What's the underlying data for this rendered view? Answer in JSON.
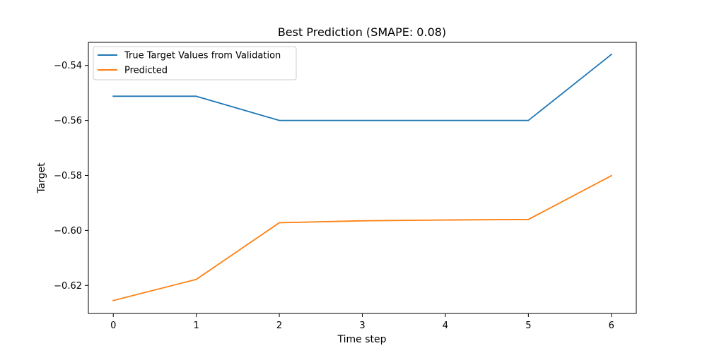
{
  "chart_data": {
    "type": "line",
    "title": "Best Prediction (SMAPE: 0.08)",
    "xlabel": "Time step",
    "ylabel": "Target",
    "x": [
      0,
      1,
      2,
      3,
      4,
      5,
      6
    ],
    "x_ticks": [
      0,
      1,
      2,
      3,
      4,
      5,
      6
    ],
    "y_ticks": [
      -0.54,
      -0.56,
      -0.58,
      -0.6,
      -0.62
    ],
    "y_tick_labels": [
      "−0.54",
      "−0.56",
      "−0.58",
      "−0.60",
      "−0.62"
    ],
    "xlim": [
      -0.3,
      6.3
    ],
    "ylim": [
      -0.6302,
      -0.5316
    ],
    "grid": false,
    "legend_position": "upper-left",
    "series": [
      {
        "name": "True Target Values from Validation",
        "color": "#1f77b4",
        "values": [
          -0.5512,
          -0.5512,
          -0.56,
          -0.56,
          -0.56,
          -0.56,
          -0.536
        ]
      },
      {
        "name": "Predicted",
        "color": "#ff7f0e",
        "values": [
          -0.6255,
          -0.6178,
          -0.5972,
          -0.5965,
          -0.5962,
          -0.596,
          -0.5801
        ]
      }
    ]
  }
}
